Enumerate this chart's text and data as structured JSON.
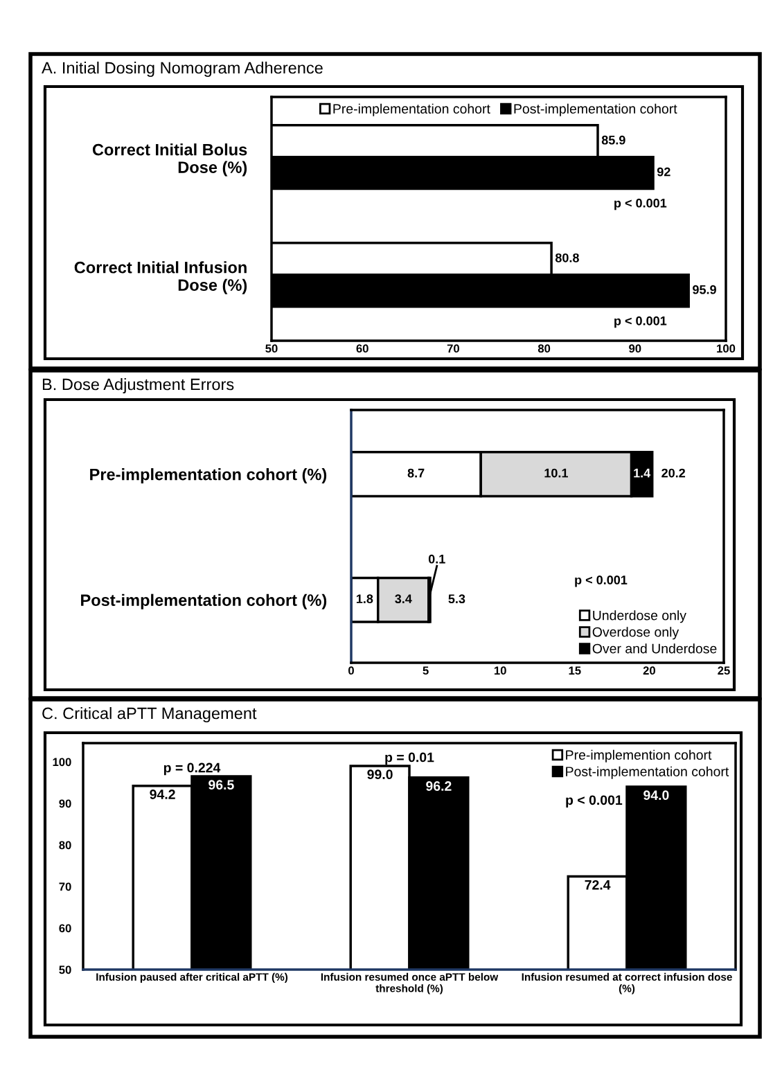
{
  "chart_data": [
    {
      "type": "bar",
      "title": "A. Initial Dosing Nomogram Adherence",
      "orientation": "horizontal",
      "categories": [
        "Correct Initial Bolus\nDose (%)",
        "Correct Initial Infusion\nDose (%)"
      ],
      "series": [
        {
          "name": "Pre-implementation cohort",
          "color": "#ffffff",
          "values": [
            85.9,
            80.8
          ]
        },
        {
          "name": "Post-implementation cohort",
          "color": "#000000",
          "values": [
            92,
            95.9
          ]
        }
      ],
      "xlim": [
        50,
        100
      ],
      "xticks": [
        50,
        60,
        70,
        80,
        90,
        100
      ],
      "legend": "top",
      "data_labels": true,
      "annotations": [
        "p < 0.001",
        "p < 0.001"
      ]
    },
    {
      "type": "bar",
      "title": "B. Dose Adjustment Errors",
      "orientation": "horizontal",
      "stacked": true,
      "categories": [
        "Pre-implementation cohort (%)",
        "Post-implementation cohort (%)"
      ],
      "series": [
        {
          "name": "Underdose only",
          "color": "#ffffff",
          "values": [
            8.7,
            1.8
          ]
        },
        {
          "name": "Overdose only",
          "color": "#d9d9d9",
          "values": [
            10.1,
            3.4
          ]
        },
        {
          "name": "Over and Underdose",
          "color": "#000000",
          "values": [
            1.4,
            0.1
          ]
        }
      ],
      "xlim": [
        0,
        25
      ],
      "xticks": [
        0,
        5,
        10,
        15,
        20,
        25
      ],
      "legend": "bottom right",
      "data_labels": true,
      "totals": [
        "20.2",
        "5.3"
      ],
      "annotations": [
        "p < 0.001"
      ]
    },
    {
      "type": "bar",
      "title": "C. Critical aPTT Management",
      "categories": [
        "Infusion paused after critical aPTT (%)",
        "Infusion resumed once aPTT below\nthreshold (%)",
        "Infusion resumed at correct infusion dose\n(%)"
      ],
      "series": [
        {
          "name": "Pre-implemention cohort",
          "color": "#ffffff",
          "values": [
            94.2,
            99.0,
            72.4
          ],
          "value_labels": [
            "94.2",
            "99.0",
            "72.4"
          ]
        },
        {
          "name": "Post-implementation cohort",
          "color": "#000000",
          "values": [
            96.5,
            96.2,
            94.0
          ],
          "value_labels": [
            "96.5",
            "96.2",
            "94.0"
          ]
        }
      ],
      "ylim": [
        50,
        104.5
      ],
      "yticks": [
        50,
        60,
        70,
        80,
        90,
        100
      ],
      "legend": "top right",
      "annotations": [
        "p = 0.224",
        "p = 0.01",
        "p < 0.001"
      ]
    }
  ]
}
